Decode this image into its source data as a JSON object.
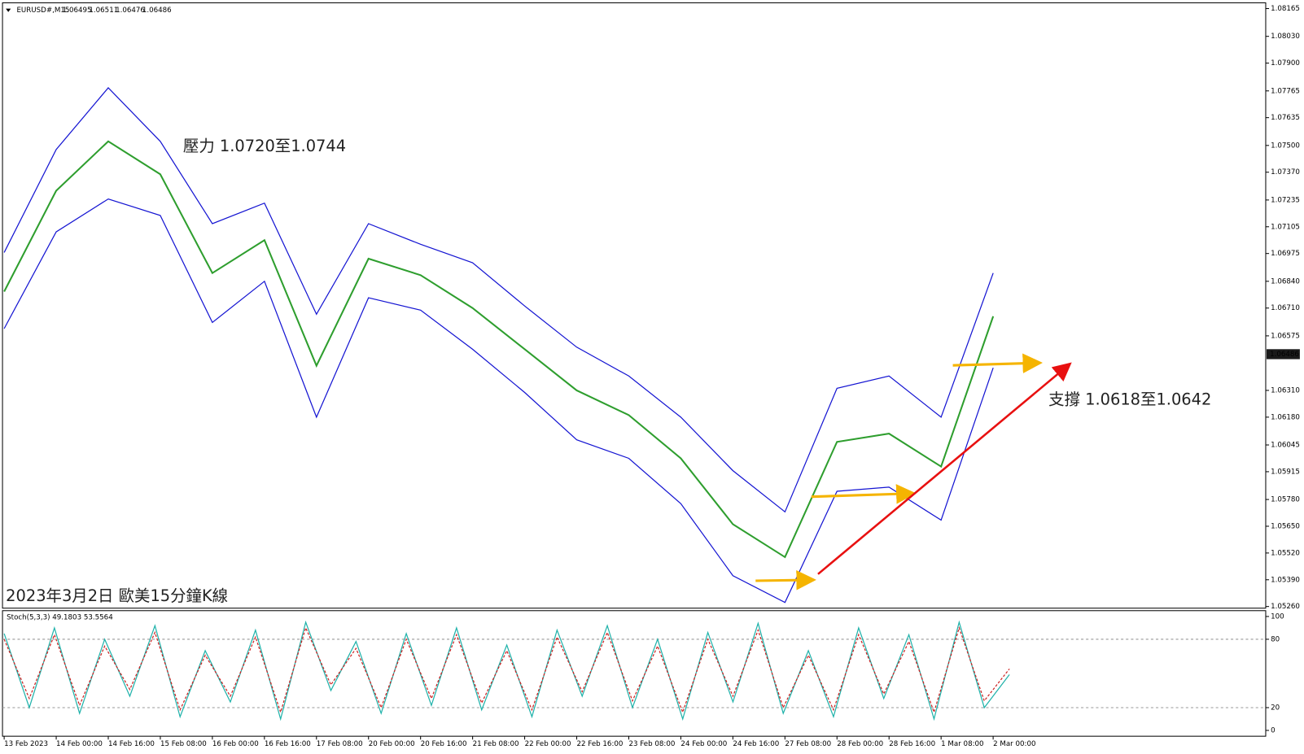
{
  "chart_data": [
    {
      "type": "line",
      "symbol": "EURUSD#,M15",
      "ohlc": [
        1.06495,
        1.06511,
        1.06476,
        1.06486
      ],
      "annotations": [
        "壓力 1.0720至1.0744",
        "支撐 1.0618至1.0642",
        "2023年3月2日 歐美15分鐘K線"
      ],
      "categories": [
        "13 Feb 2023",
        "14 Feb 00:00",
        "14 Feb 16:00",
        "15 Feb 08:00",
        "16 Feb 00:00",
        "16 Feb 16:00",
        "17 Feb 08:00",
        "20 Feb 00:00",
        "20 Feb 16:00",
        "21 Feb 08:00",
        "22 Feb 00:00",
        "22 Feb 16:00",
        "23 Feb 08:00",
        "24 Feb 00:00",
        "24 Feb 16:00",
        "27 Feb 08:00",
        "28 Feb 00:00",
        "28 Feb 16:00",
        "1 Mar 08:00",
        "2 Mar 00:00"
      ],
      "series": [
        {
          "name": "Price",
          "color": "#2e9e2e",
          "values": [
            1.0679,
            1.0728,
            1.0752,
            1.0736,
            1.0688,
            1.0704,
            1.0643,
            1.0695,
            1.0687,
            1.0671,
            1.0651,
            1.0631,
            1.0619,
            1.0598,
            1.0566,
            1.055,
            1.0606,
            1.061,
            1.0594,
            1.0667
          ]
        },
        {
          "name": "Upper Band",
          "color": "#1414d2",
          "values": [
            1.0698,
            1.0748,
            1.0778,
            1.0752,
            1.0712,
            1.0722,
            1.0668,
            1.0712,
            1.0702,
            1.0693,
            1.0672,
            1.0652,
            1.0638,
            1.0618,
            1.0592,
            1.0572,
            1.0632,
            1.0638,
            1.0618,
            1.0688
          ]
        },
        {
          "name": "Lower Band",
          "color": "#1414d2",
          "values": [
            1.0661,
            1.0708,
            1.0724,
            1.0716,
            1.0664,
            1.0684,
            1.0618,
            1.0676,
            1.067,
            1.0651,
            1.063,
            1.0607,
            1.0598,
            1.0576,
            1.0541,
            1.0528,
            1.0582,
            1.0584,
            1.0568,
            1.0642
          ]
        }
      ],
      "ylim": [
        1.05252,
        1.08193
      ],
      "yticks": [
        1.08165,
        {
          "value": 1.0803,
          "label": "1.08030"
        },
        {
          "value": 1.079,
          "label": "1.07900"
        },
        1.07765,
        1.07635,
        {
          "value": 1.075,
          "label": "1.07500"
        },
        {
          "value": 1.0737,
          "label": "1.07370"
        },
        1.07235,
        1.07105,
        1.06975,
        {
          "value": 1.0684,
          "label": "1.06840"
        },
        {
          "value": 1.0671,
          "label": "1.06710"
        },
        1.06575,
        {
          "value": 1.0631,
          "label": "1.06310"
        },
        {
          "value": 1.0618,
          "label": "1.06180"
        },
        1.06045,
        1.05915,
        {
          "value": 1.0578,
          "label": "1.05780"
        },
        {
          "value": 1.0565,
          "label": "1.05650"
        },
        {
          "value": 1.0552,
          "label": "1.05520"
        },
        {
          "value": 1.0539,
          "label": "1.05390"
        },
        {
          "value": 1.0526,
          "label": "1.05260"
        }
      ]
    },
    {
      "type": "line",
      "title": "Stoch(5,3,3) 49.1803 53.5564",
      "series": [
        {
          "name": "Main",
          "color": "#20b2aa",
          "values": [
            85,
            20,
            90,
            15,
            80,
            30,
            92,
            12,
            70,
            25,
            88,
            10,
            95,
            35,
            78,
            15,
            85,
            22,
            90,
            18,
            75,
            12,
            88,
            30,
            92,
            20,
            80,
            10,
            86,
            25,
            94,
            15,
            70,
            12,
            90,
            28,
            84,
            10,
            95,
            20,
            49
          ]
        },
        {
          "name": "Signal",
          "color": "#cc2222",
          "values": [
            80,
            28,
            84,
            22,
            74,
            36,
            86,
            18,
            66,
            30,
            82,
            16,
            90,
            40,
            72,
            20,
            80,
            28,
            84,
            24,
            70,
            18,
            82,
            34,
            86,
            26,
            74,
            16,
            80,
            30,
            88,
            20,
            66,
            18,
            84,
            32,
            78,
            16,
            90,
            26,
            54
          ]
        }
      ],
      "ylim": [
        0,
        100
      ],
      "yticks": [
        0,
        20,
        80,
        100
      ]
    }
  ]
}
